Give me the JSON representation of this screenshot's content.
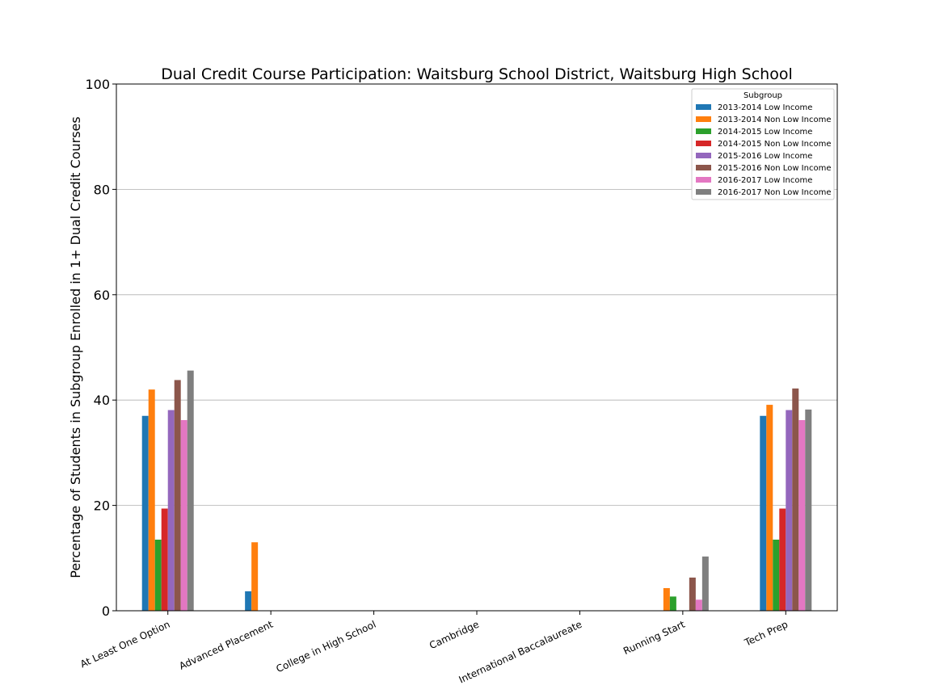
{
  "chart_data": {
    "type": "bar",
    "title": "Dual Credit Course Participation: Waitsburg School District, Waitsburg High School",
    "xlabel": "",
    "ylabel": "Percentage of Students in Subgroup Enrolled in 1+ Dual Credit Courses",
    "ylim": [
      0,
      100
    ],
    "yticks": [
      0,
      20,
      40,
      60,
      80,
      100
    ],
    "grid": "horizontal",
    "legend_title": "Subgroup",
    "legend_position": "top-right",
    "categories": [
      "At Least One Option",
      "Advanced Placement",
      "College in High School",
      "Cambridge",
      "International Baccalaureate",
      "Running Start",
      "Tech Prep"
    ],
    "series": [
      {
        "name": "2013-2014 Low Income",
        "color": "#1f77b4",
        "values": [
          37.0,
          3.7,
          0,
          0,
          0,
          0,
          37.0
        ]
      },
      {
        "name": "2013-2014 Non Low Income",
        "color": "#ff7f0e",
        "values": [
          42.0,
          13.0,
          0,
          0,
          0,
          4.3,
          39.1
        ]
      },
      {
        "name": "2014-2015 Low Income",
        "color": "#2ca02c",
        "values": [
          13.5,
          0,
          0,
          0,
          0,
          2.7,
          13.5
        ]
      },
      {
        "name": "2014-2015 Non Low Income",
        "color": "#d62728",
        "values": [
          19.4,
          0,
          0,
          0,
          0,
          0,
          19.4
        ]
      },
      {
        "name": "2015-2016 Low Income",
        "color": "#9467bd",
        "values": [
          38.1,
          0,
          0,
          0,
          0,
          0,
          38.1
        ]
      },
      {
        "name": "2015-2016 Non Low Income",
        "color": "#8c564b",
        "values": [
          43.8,
          0,
          0,
          0,
          0,
          6.3,
          42.2
        ]
      },
      {
        "name": "2016-2017 Low Income",
        "color": "#e377c2",
        "values": [
          36.2,
          0,
          0,
          0,
          0,
          2.1,
          36.2
        ]
      },
      {
        "name": "2016-2017 Non Low Income",
        "color": "#7f7f7f",
        "values": [
          45.6,
          0,
          0,
          0,
          0,
          10.3,
          38.2
        ]
      }
    ]
  }
}
